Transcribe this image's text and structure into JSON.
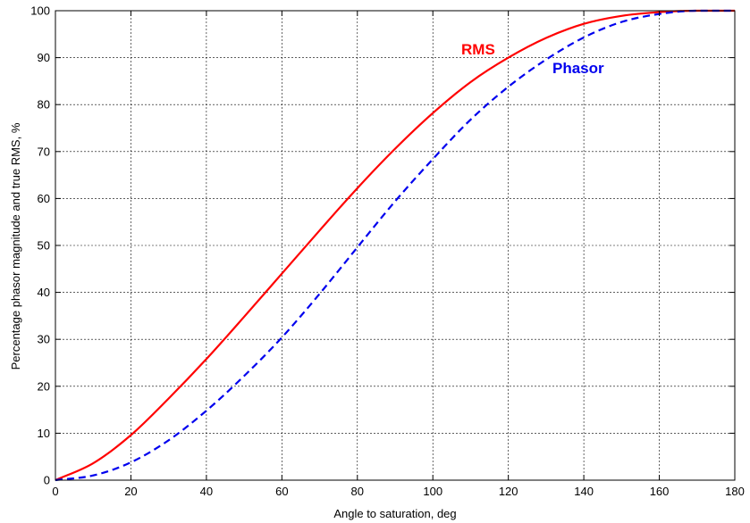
{
  "chart_data": {
    "type": "line",
    "title": "",
    "xlabel": "Angle to saturation, deg",
    "ylabel": "Percentage phasor magnitude and true RMS, %",
    "xlim": [
      0,
      180
    ],
    "ylim": [
      0,
      100
    ],
    "x_ticks": [
      "0",
      "20",
      "40",
      "60",
      "80",
      "100",
      "120",
      "140",
      "160",
      "180"
    ],
    "y_ticks": [
      "0",
      "10",
      "20",
      "30",
      "40",
      "50",
      "60",
      "70",
      "80",
      "90",
      "100"
    ],
    "grid": true,
    "legend": "inline labels",
    "series": [
      {
        "name": "RMS",
        "color": "#ff0000",
        "style": "solid",
        "x": [
          0,
          10,
          20,
          30,
          40,
          50,
          60,
          70,
          80,
          90,
          100,
          110,
          120,
          130,
          140,
          150,
          160,
          170,
          180
        ],
        "y": [
          0,
          3.6,
          9.6,
          17.4,
          25.8,
          34.8,
          44.0,
          53.2,
          62.2,
          70.6,
          78.2,
          84.8,
          90.0,
          94.2,
          97.2,
          98.9,
          99.7,
          100,
          100
        ]
      },
      {
        "name": "Phasor",
        "color": "#0000ee",
        "style": "dashed",
        "x": [
          0,
          10,
          20,
          30,
          40,
          50,
          60,
          70,
          80,
          90,
          100,
          110,
          120,
          130,
          140,
          150,
          160,
          170,
          180
        ],
        "y": [
          0,
          1.0,
          3.8,
          8.5,
          14.8,
          22.2,
          30.4,
          39.7,
          49.6,
          59.4,
          68.4,
          76.8,
          83.8,
          89.6,
          94.3,
          97.6,
          99.3,
          100,
          100
        ]
      }
    ]
  }
}
